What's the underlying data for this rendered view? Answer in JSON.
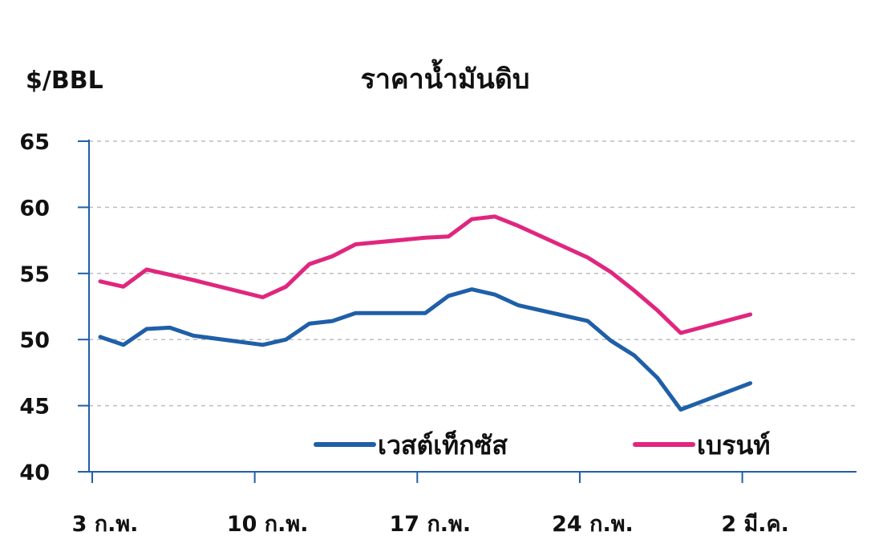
{
  "chart_data": {
    "type": "line",
    "title": "ราคาน้ำมันดิบ",
    "ylabel": "$/BBL",
    "ylim": [
      40,
      65
    ],
    "yticks": [
      40,
      45,
      50,
      55,
      60,
      65
    ],
    "grid": true,
    "legend_position": "bottom-right",
    "x_tick_labels": [
      "3 ก.พ.",
      "10 ก.พ.",
      "17 ก.พ.",
      "24 ก.พ.",
      "2 มี.ค."
    ],
    "x_tick_days": [
      0,
      7,
      14,
      21,
      28
    ],
    "x_days": [
      0,
      1,
      2,
      3,
      4,
      7,
      8,
      9,
      10,
      11,
      14,
      15,
      16,
      17,
      18,
      21,
      22,
      23,
      24,
      25,
      28
    ],
    "series": [
      {
        "name": "เวสต์เท็กซัส",
        "color": "#1f5fa8",
        "values": [
          50.2,
          49.6,
          50.8,
          50.9,
          50.3,
          49.6,
          50.0,
          51.2,
          51.4,
          52.0,
          52.0,
          53.3,
          53.8,
          53.4,
          52.6,
          51.4,
          49.9,
          48.8,
          47.1,
          44.7,
          46.7
        ]
      },
      {
        "name": "เบรนท์",
        "color": "#e0267e",
        "values": [
          54.4,
          54.0,
          55.3,
          54.9,
          54.5,
          53.2,
          54.0,
          55.7,
          56.3,
          57.2,
          57.7,
          57.8,
          59.1,
          59.3,
          58.6,
          56.2,
          55.1,
          53.7,
          52.2,
          50.5,
          51.9
        ]
      }
    ]
  }
}
